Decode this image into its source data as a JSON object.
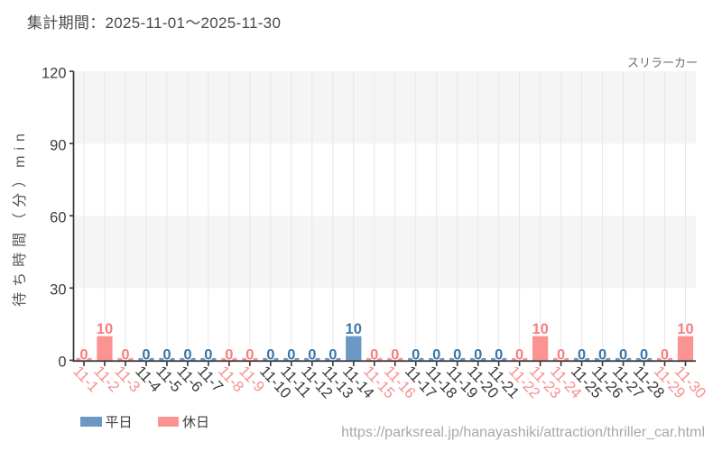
{
  "header": {
    "title": "集計期間：2025-11-01～2025-11-30"
  },
  "attraction": {
    "name": "スリラーカー"
  },
  "footer": {
    "url": "https://parksreal.jp/hanayashiki/attraction/thriller_car.html"
  },
  "legend": {
    "weekday": {
      "label": "平日",
      "color": "#6b99c4"
    },
    "holiday": {
      "label": "休日",
      "color": "#fb9393"
    }
  },
  "chart_data": {
    "type": "bar",
    "title": "集計期間：2025-11-01～2025-11-30",
    "annotation": "スリラーカー",
    "ylabel": "待ち時間（分）min",
    "ylim": [
      0,
      120
    ],
    "yticks": [
      0,
      30,
      60,
      90,
      120
    ],
    "grid": "vertical-category-lines, alternating-horizontal-bands",
    "legend_position": "bottom-left",
    "categories": [
      "11-1",
      "11-2",
      "11-3",
      "11-4",
      "11-5",
      "11-6",
      "11-7",
      "11-8",
      "11-9",
      "11-10",
      "11-11",
      "11-12",
      "11-13",
      "11-14",
      "11-15",
      "11-16",
      "11-17",
      "11-18",
      "11-19",
      "11-20",
      "11-21",
      "11-22",
      "11-23",
      "11-24",
      "11-25",
      "11-26",
      "11-27",
      "11-28",
      "11-29",
      "11-30"
    ],
    "day_types": [
      "holiday",
      "holiday",
      "holiday",
      "weekday",
      "weekday",
      "weekday",
      "weekday",
      "holiday",
      "holiday",
      "weekday",
      "weekday",
      "weekday",
      "weekday",
      "weekday",
      "holiday",
      "holiday",
      "weekday",
      "weekday",
      "weekday",
      "weekday",
      "weekday",
      "holiday",
      "holiday",
      "holiday",
      "weekday",
      "weekday",
      "weekday",
      "weekday",
      "holiday",
      "holiday"
    ],
    "values": [
      0,
      10,
      0,
      0,
      0,
      0,
      0,
      0,
      0,
      0,
      0,
      0,
      0,
      10,
      0,
      0,
      0,
      0,
      0,
      0,
      0,
      0,
      10,
      0,
      0,
      0,
      0,
      0,
      0,
      10
    ],
    "series": [
      {
        "name": "平日",
        "type": "weekday",
        "bar_color": "#6b99c4",
        "label_color": "#3b76ab"
      },
      {
        "name": "休日",
        "type": "holiday",
        "bar_color": "#fb9393",
        "label_color": "#f77e7e"
      }
    ],
    "tick_label_colors": {
      "weekday": "#3a3a3a",
      "holiday": "#f98e8e"
    },
    "colors": {
      "band_fill": "#f5f5f5",
      "gridline": "#e7e7e7",
      "axis_line": "#333333",
      "ytick_text": "#3f3f3f"
    }
  }
}
